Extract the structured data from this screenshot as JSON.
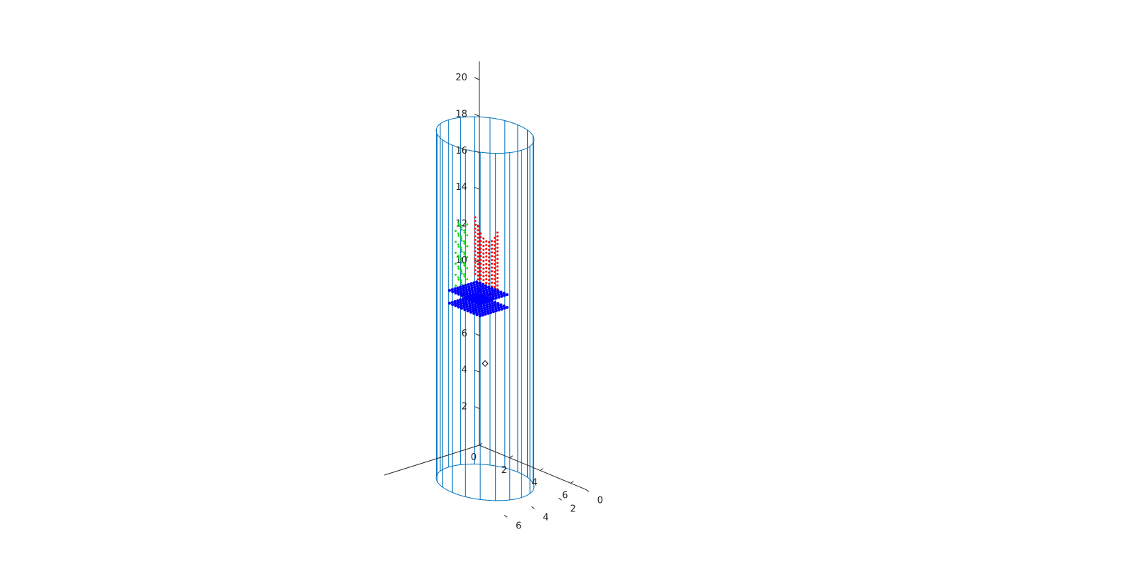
{
  "chart_data": {
    "type": "scatter3d",
    "title": "",
    "xlabel": "",
    "ylabel": "",
    "zlabel": "",
    "axes": {
      "x": {
        "ticks": [
          0,
          2,
          4,
          6
        ],
        "lim": [
          0,
          7
        ]
      },
      "y": {
        "ticks": [
          0,
          2,
          4,
          6
        ],
        "lim": [
          0,
          7
        ]
      },
      "z": {
        "ticks": [
          2,
          4,
          6,
          8,
          10,
          12,
          14,
          16,
          18,
          20
        ],
        "lim": [
          0,
          21
        ]
      }
    },
    "grid": false,
    "legend": "none",
    "colors": {
      "cylinder": "#0072BD",
      "axis": "#262626",
      "red_points": "#ff0000",
      "green_points": "#00dd00",
      "blue_points": "#0000ff",
      "marker": "#000000"
    },
    "cylinder": {
      "center_x": 3.5,
      "center_y": 3.5,
      "radius": 2.4,
      "z_min": 0,
      "z_max": 19,
      "generator_lines": 20
    },
    "series": [
      {
        "color": "red",
        "shape": "parabolic-arcs",
        "x_range": [
          2.4,
          4.4
        ],
        "y_range": [
          3.0,
          3.6
        ],
        "z_range": [
          10.0,
          14.0
        ]
      },
      {
        "color": "green",
        "shape": "vertical-strip",
        "x_range": [
          2.9,
          3.3
        ],
        "y_range": [
          4.6,
          5.0
        ],
        "z_range": [
          10.5,
          14.3
        ]
      },
      {
        "color": "blue",
        "shape": "base-rectangle",
        "x_range": [
          2.5,
          4.5
        ],
        "y_range": [
          3.0,
          5.0
        ],
        "z_range": [
          9.8,
          10.5
        ]
      }
    ],
    "marker_point": {
      "x": 3.5,
      "y": 3.5,
      "z": 6.5,
      "style": "open-diamond"
    }
  }
}
